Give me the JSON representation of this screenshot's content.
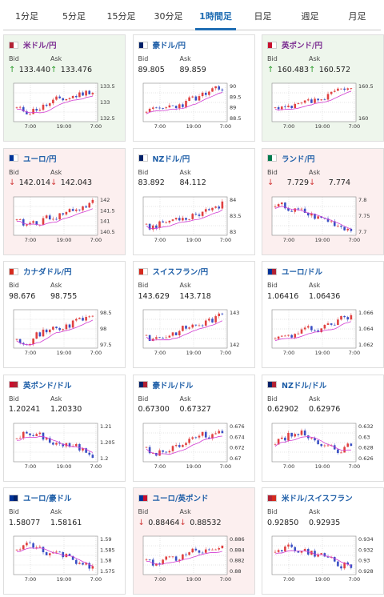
{
  "tabs": [
    {
      "label": "1分足",
      "active": false
    },
    {
      "label": "5分足",
      "active": false
    },
    {
      "label": "15分足",
      "active": false
    },
    {
      "label": "30分足",
      "active": false
    },
    {
      "label": "1時間足",
      "active": true
    },
    {
      "label": "日足",
      "active": false
    },
    {
      "label": "週足",
      "active": false
    },
    {
      "label": "月足",
      "active": false
    }
  ],
  "labels": {
    "bid": "Bid",
    "ask": "Ask"
  },
  "colors": {
    "up": "#2a9b2a",
    "down": "#d23b3b",
    "ma": "#d23cd2",
    "bull": "#e04040",
    "bear": "#3a4fc4"
  },
  "x_ticks": [
    "7:00",
    "19:00",
    "7:00"
  ],
  "cards": [
    {
      "pair": "米ドル/円",
      "flags": [
        "#b22234",
        "#fff"
      ],
      "trend": "up",
      "bid": "133.440",
      "ask": "133.476",
      "dir": "up",
      "y_ticks": [
        "133.5",
        "133",
        "132.5"
      ],
      "seed": 11,
      "shape": "rise"
    },
    {
      "pair": "豪ドル/円",
      "flags": [
        "#012169",
        "#fff"
      ],
      "trend": "flat",
      "bid": "89.805",
      "ask": "89.859",
      "dir": "",
      "y_ticks": [
        "90",
        "89.5",
        "89",
        "88.5"
      ],
      "seed": 23,
      "shape": "rise"
    },
    {
      "pair": "英ポンド/円",
      "flags": [
        "#c8102e",
        "#fff"
      ],
      "trend": "up",
      "bid": "160.483",
      "ask": "160.572",
      "dir": "up",
      "y_ticks": [
        "160.5",
        "160"
      ],
      "seed": 37,
      "shape": "rise"
    },
    {
      "pair": "ユーロ/円",
      "flags": [
        "#003399",
        "#fff"
      ],
      "trend": "down",
      "bid": "142.014",
      "ask": "142.043",
      "dir": "down",
      "y_ticks": [
        "142",
        "141.5",
        "141",
        "140.5"
      ],
      "seed": 41,
      "shape": "rise"
    },
    {
      "pair": "NZドル/円",
      "flags": [
        "#012169",
        "#fff"
      ],
      "trend": "flat",
      "bid": "83.892",
      "ask": "84.112",
      "dir": "",
      "y_ticks": [
        "84",
        "83.5",
        "83"
      ],
      "seed": 53,
      "shape": "rise"
    },
    {
      "pair": "ランド/円",
      "flags": [
        "#007a4d",
        "#fff"
      ],
      "trend": "down",
      "bid": "7.729",
      "ask": "7.774",
      "dir": "down",
      "y_ticks": [
        "7.8",
        "7.75",
        "7.7"
      ],
      "seed": 67,
      "shape": "fall"
    },
    {
      "pair": "カナダドル/円",
      "flags": [
        "#d52b1e",
        "#fff"
      ],
      "trend": "flat",
      "bid": "98.676",
      "ask": "98.755",
      "dir": "",
      "y_ticks": [
        "98.5",
        "98",
        "97.5"
      ],
      "seed": 71,
      "shape": "rise"
    },
    {
      "pair": "スイスフラン/円",
      "flags": [
        "#d52b1e",
        "#fff"
      ],
      "trend": "flat",
      "bid": "143.629",
      "ask": "143.718",
      "dir": "",
      "y_ticks": [
        "143",
        "142"
      ],
      "seed": 83,
      "shape": "rise"
    },
    {
      "pair": "ユーロ/ドル",
      "flags": [
        "#003399",
        "#b22234"
      ],
      "trend": "flat",
      "bid": "1.06416",
      "ask": "1.06436",
      "dir": "",
      "y_ticks": [
        "1.066",
        "1.064",
        "1.062"
      ],
      "seed": 97,
      "shape": "rise"
    },
    {
      "pair": "英ポンド/ドル",
      "flags": [
        "#c8102e",
        "#b22234"
      ],
      "trend": "flat",
      "bid": "1.20241",
      "ask": "1.20330",
      "dir": "",
      "y_ticks": [
        "1.21",
        "1.205",
        "1.2"
      ],
      "seed": 101,
      "shape": "fall"
    },
    {
      "pair": "豪ドル/ドル",
      "flags": [
        "#012169",
        "#b22234"
      ],
      "trend": "flat",
      "bid": "0.67300",
      "ask": "0.67327",
      "dir": "",
      "y_ticks": [
        "0.676",
        "0.674",
        "0.672",
        "0.67"
      ],
      "seed": 113,
      "shape": "rise"
    },
    {
      "pair": "NZドル/ドル",
      "flags": [
        "#012169",
        "#b22234"
      ],
      "trend": "flat",
      "bid": "0.62902",
      "ask": "0.62976",
      "dir": "",
      "y_ticks": [
        "0.632",
        "0.63",
        "0.628",
        "0.626"
      ],
      "seed": 127,
      "shape": "wave"
    },
    {
      "pair": "ユーロ/豪ドル",
      "flags": [
        "#003399",
        "#012169"
      ],
      "trend": "flat",
      "bid": "1.58077",
      "ask": "1.58161",
      "dir": "",
      "y_ticks": [
        "1.59",
        "1.585",
        "1.58",
        "1.575"
      ],
      "seed": 131,
      "shape": "fall"
    },
    {
      "pair": "ユーロ/英ポンド",
      "flags": [
        "#003399",
        "#c8102e"
      ],
      "trend": "down",
      "bid": "0.88464",
      "ask": "0.88532",
      "dir": "down",
      "y_ticks": [
        "0.886",
        "0.884",
        "0.882",
        "0.88"
      ],
      "seed": 139,
      "shape": "rise"
    },
    {
      "pair": "米ドル/スイスフラン",
      "flags": [
        "#b22234",
        "#d52b1e"
      ],
      "trend": "flat",
      "bid": "0.92850",
      "ask": "0.92935",
      "dir": "",
      "y_ticks": [
        "0.934",
        "0.932",
        "0.93",
        "0.928"
      ],
      "seed": 149,
      "shape": "fall"
    }
  ]
}
